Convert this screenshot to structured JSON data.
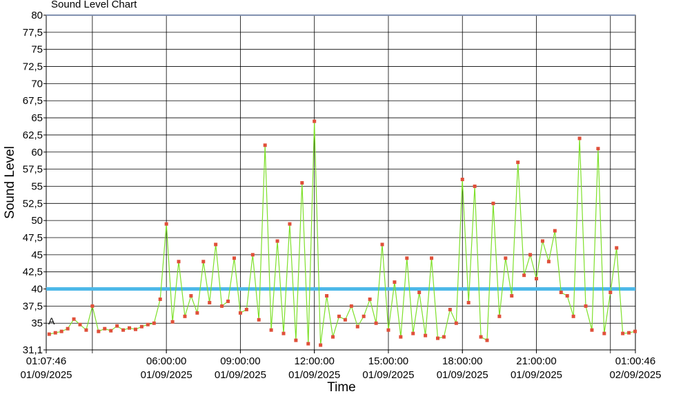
{
  "chart_data": {
    "type": "line",
    "title": "Sound Level Chart",
    "x_label": "Time",
    "y_label": "Sound Level",
    "annotation": "A",
    "threshold": 40,
    "threshold_color": "#4db8e8",
    "grid": true,
    "xlim": [
      1.12944,
      25.01278
    ],
    "ylim": [
      31.1,
      80
    ],
    "xticks": [
      {
        "value": 1.12944,
        "label": "01:07:46\n01/09/2025"
      },
      {
        "value": 6,
        "label": "06:00:00\n01/09/2025"
      },
      {
        "value": 9,
        "label": "09:00:00\n01/09/2025"
      },
      {
        "value": 12,
        "label": "12:00:00\n01/09/2025"
      },
      {
        "value": 15,
        "label": "15:00:00\n01/09/2025"
      },
      {
        "value": 18,
        "label": "18:00:00\n01/09/2025"
      },
      {
        "value": 21,
        "label": "21:00:00\n01/09/2025"
      },
      {
        "value": 25.01278,
        "label": "01:00:46\n02/09/2025"
      }
    ],
    "xgrid": [
      3,
      6,
      9,
      12,
      15,
      18,
      21,
      24
    ],
    "yticks": [
      {
        "value": 31.1,
        "label": "31,1"
      },
      35,
      {
        "value": 37.5,
        "label": "37,5"
      },
      40,
      {
        "value": 42.5,
        "label": "42,5"
      },
      45,
      {
        "value": 47.5,
        "label": "47,5"
      },
      50,
      {
        "value": 52.5,
        "label": "52,5"
      },
      55,
      {
        "value": 57.5,
        "label": "57,5"
      },
      60,
      {
        "value": 62.5,
        "label": "62,5"
      },
      65,
      {
        "value": 67.5,
        "label": "67,5"
      },
      70,
      {
        "value": 72.5,
        "label": "72,5"
      },
      75,
      {
        "value": 77.5,
        "label": "77,5"
      },
      80
    ],
    "x": [
      1.25,
      1.5,
      1.75,
      2,
      2.25,
      2.5,
      2.75,
      3,
      3.25,
      3.5,
      3.75,
      4,
      4.25,
      4.5,
      4.75,
      5,
      5.25,
      5.5,
      5.75,
      6,
      6.25,
      6.5,
      6.75,
      7,
      7.25,
      7.5,
      7.75,
      8,
      8.25,
      8.5,
      8.75,
      9,
      9.25,
      9.5,
      9.75,
      10,
      10.25,
      10.5,
      10.75,
      11,
      11.25,
      11.5,
      11.75,
      12,
      12.25,
      12.5,
      12.75,
      13,
      13.25,
      13.5,
      13.75,
      14,
      14.25,
      14.5,
      14.75,
      15,
      15.25,
      15.5,
      15.75,
      16,
      16.25,
      16.5,
      16.75,
      17,
      17.25,
      17.5,
      17.75,
      18,
      18.25,
      18.5,
      18.75,
      19,
      19.25,
      19.5,
      19.75,
      20,
      20.25,
      20.5,
      20.75,
      21,
      21.25,
      21.5,
      21.75,
      22,
      22.25,
      22.5,
      22.75,
      23,
      23.25,
      23.5,
      23.75,
      24,
      24.25,
      24.5,
      24.75,
      25
    ],
    "series": [
      {
        "color": "#7ee02a",
        "marker_color": "#e0503a",
        "values": [
          33.4,
          33.6,
          33.8,
          34.2,
          35.6,
          34.8,
          34,
          37.5,
          33.8,
          34.2,
          33.9,
          34.6,
          34,
          34.3,
          34.1,
          34.5,
          34.8,
          35,
          38.5,
          49.5,
          35.2,
          44,
          36,
          39,
          36.5,
          44,
          38,
          46.5,
          37.5,
          38.2,
          44.5,
          36.5,
          37,
          45,
          35.5,
          61,
          34,
          47,
          33.5,
          49.5,
          32.5,
          55.5,
          32,
          64.5,
          31.8,
          39,
          33,
          36,
          35.5,
          37.5,
          34.5,
          36,
          38.5,
          35,
          46.5,
          34,
          41,
          33,
          44.5,
          33.5,
          39.5,
          33.2,
          44.5,
          32.8,
          33,
          37,
          35,
          56,
          38,
          55,
          33,
          32.5,
          52.5,
          36,
          44.5,
          39,
          58.5,
          42,
          45,
          41.5,
          47,
          44,
          48.5,
          39.5,
          39,
          36,
          62,
          37.5,
          34,
          60.5,
          33.5,
          39.5,
          46,
          33.5,
          33.6,
          33.8
        ]
      }
    ]
  }
}
